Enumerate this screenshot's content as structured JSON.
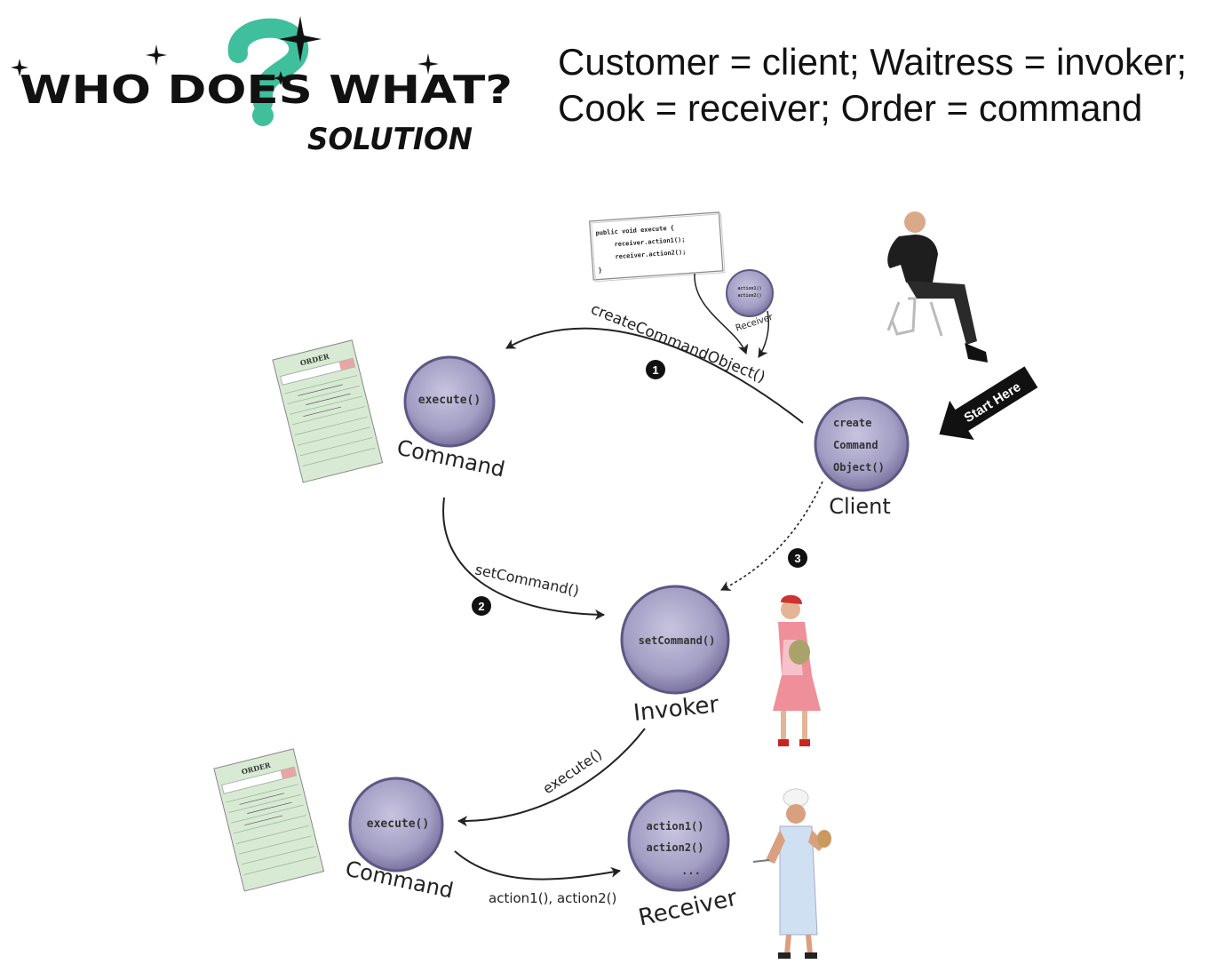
{
  "header": {
    "title": "WHO DOES WHAT?",
    "subtitle_word": "SOLUTION",
    "mapping_line1": "Customer = client; Waitress = invoker;",
    "mapping_line2": "Cook = receiver; Order = command"
  },
  "code_card": {
    "line1": "public void execute {",
    "line2": "receiver.action1();",
    "line3": "receiver.action2();",
    "line4": "}"
  },
  "small_receiver": {
    "line1": "action1()",
    "line2": "action2()",
    "label": "Receiver"
  },
  "nodes": {
    "command_top": {
      "method": "execute()",
      "label": "Command"
    },
    "client": {
      "line1": "create",
      "line2": "Command",
      "line3": "Object()",
      "label": "Client"
    },
    "invoker": {
      "method": "setCommand()",
      "label": "Invoker"
    },
    "command_bottom": {
      "method": "execute()",
      "label": "Command"
    },
    "receiver": {
      "line1": "action1()",
      "line2": "action2()",
      "line3": "...",
      "label": "Receiver"
    }
  },
  "arrows": {
    "create_command_object": "createCommandObject()",
    "set_command": "setCommand()",
    "execute": "execute()",
    "actions": "action1(), action2()"
  },
  "steps": {
    "one": "1",
    "two": "2",
    "three": "3"
  },
  "start_here": "Start Here",
  "order_slip_title": "ORDER",
  "colors": {
    "node_fill": "#a7a2c6",
    "node_stroke": "#5d5784",
    "question_mark": "#3fbf9c",
    "slip_green": "#cfe6c9"
  }
}
